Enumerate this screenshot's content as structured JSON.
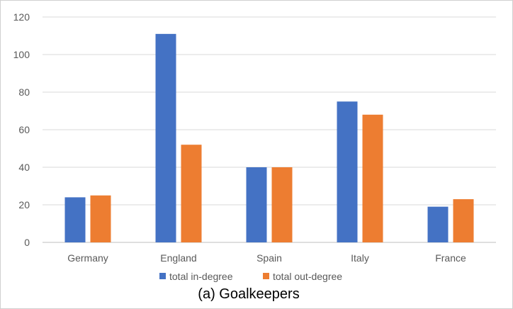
{
  "chart_data": {
    "type": "bar",
    "caption": "(a) Goalkeepers",
    "categories": [
      "Germany",
      "England",
      "Spain",
      "Italy",
      "France"
    ],
    "series": [
      {
        "name": "total in-degree",
        "color": "#4472C4",
        "values": [
          24,
          111,
          40,
          75,
          19
        ]
      },
      {
        "name": "total out-degree",
        "color": "#ED7D31",
        "values": [
          25,
          52,
          40,
          68,
          23
        ]
      }
    ],
    "ylim": [
      0,
      120
    ],
    "yticks": [
      0,
      20,
      40,
      60,
      80,
      100,
      120
    ],
    "grid": true,
    "legend": "bottom"
  }
}
